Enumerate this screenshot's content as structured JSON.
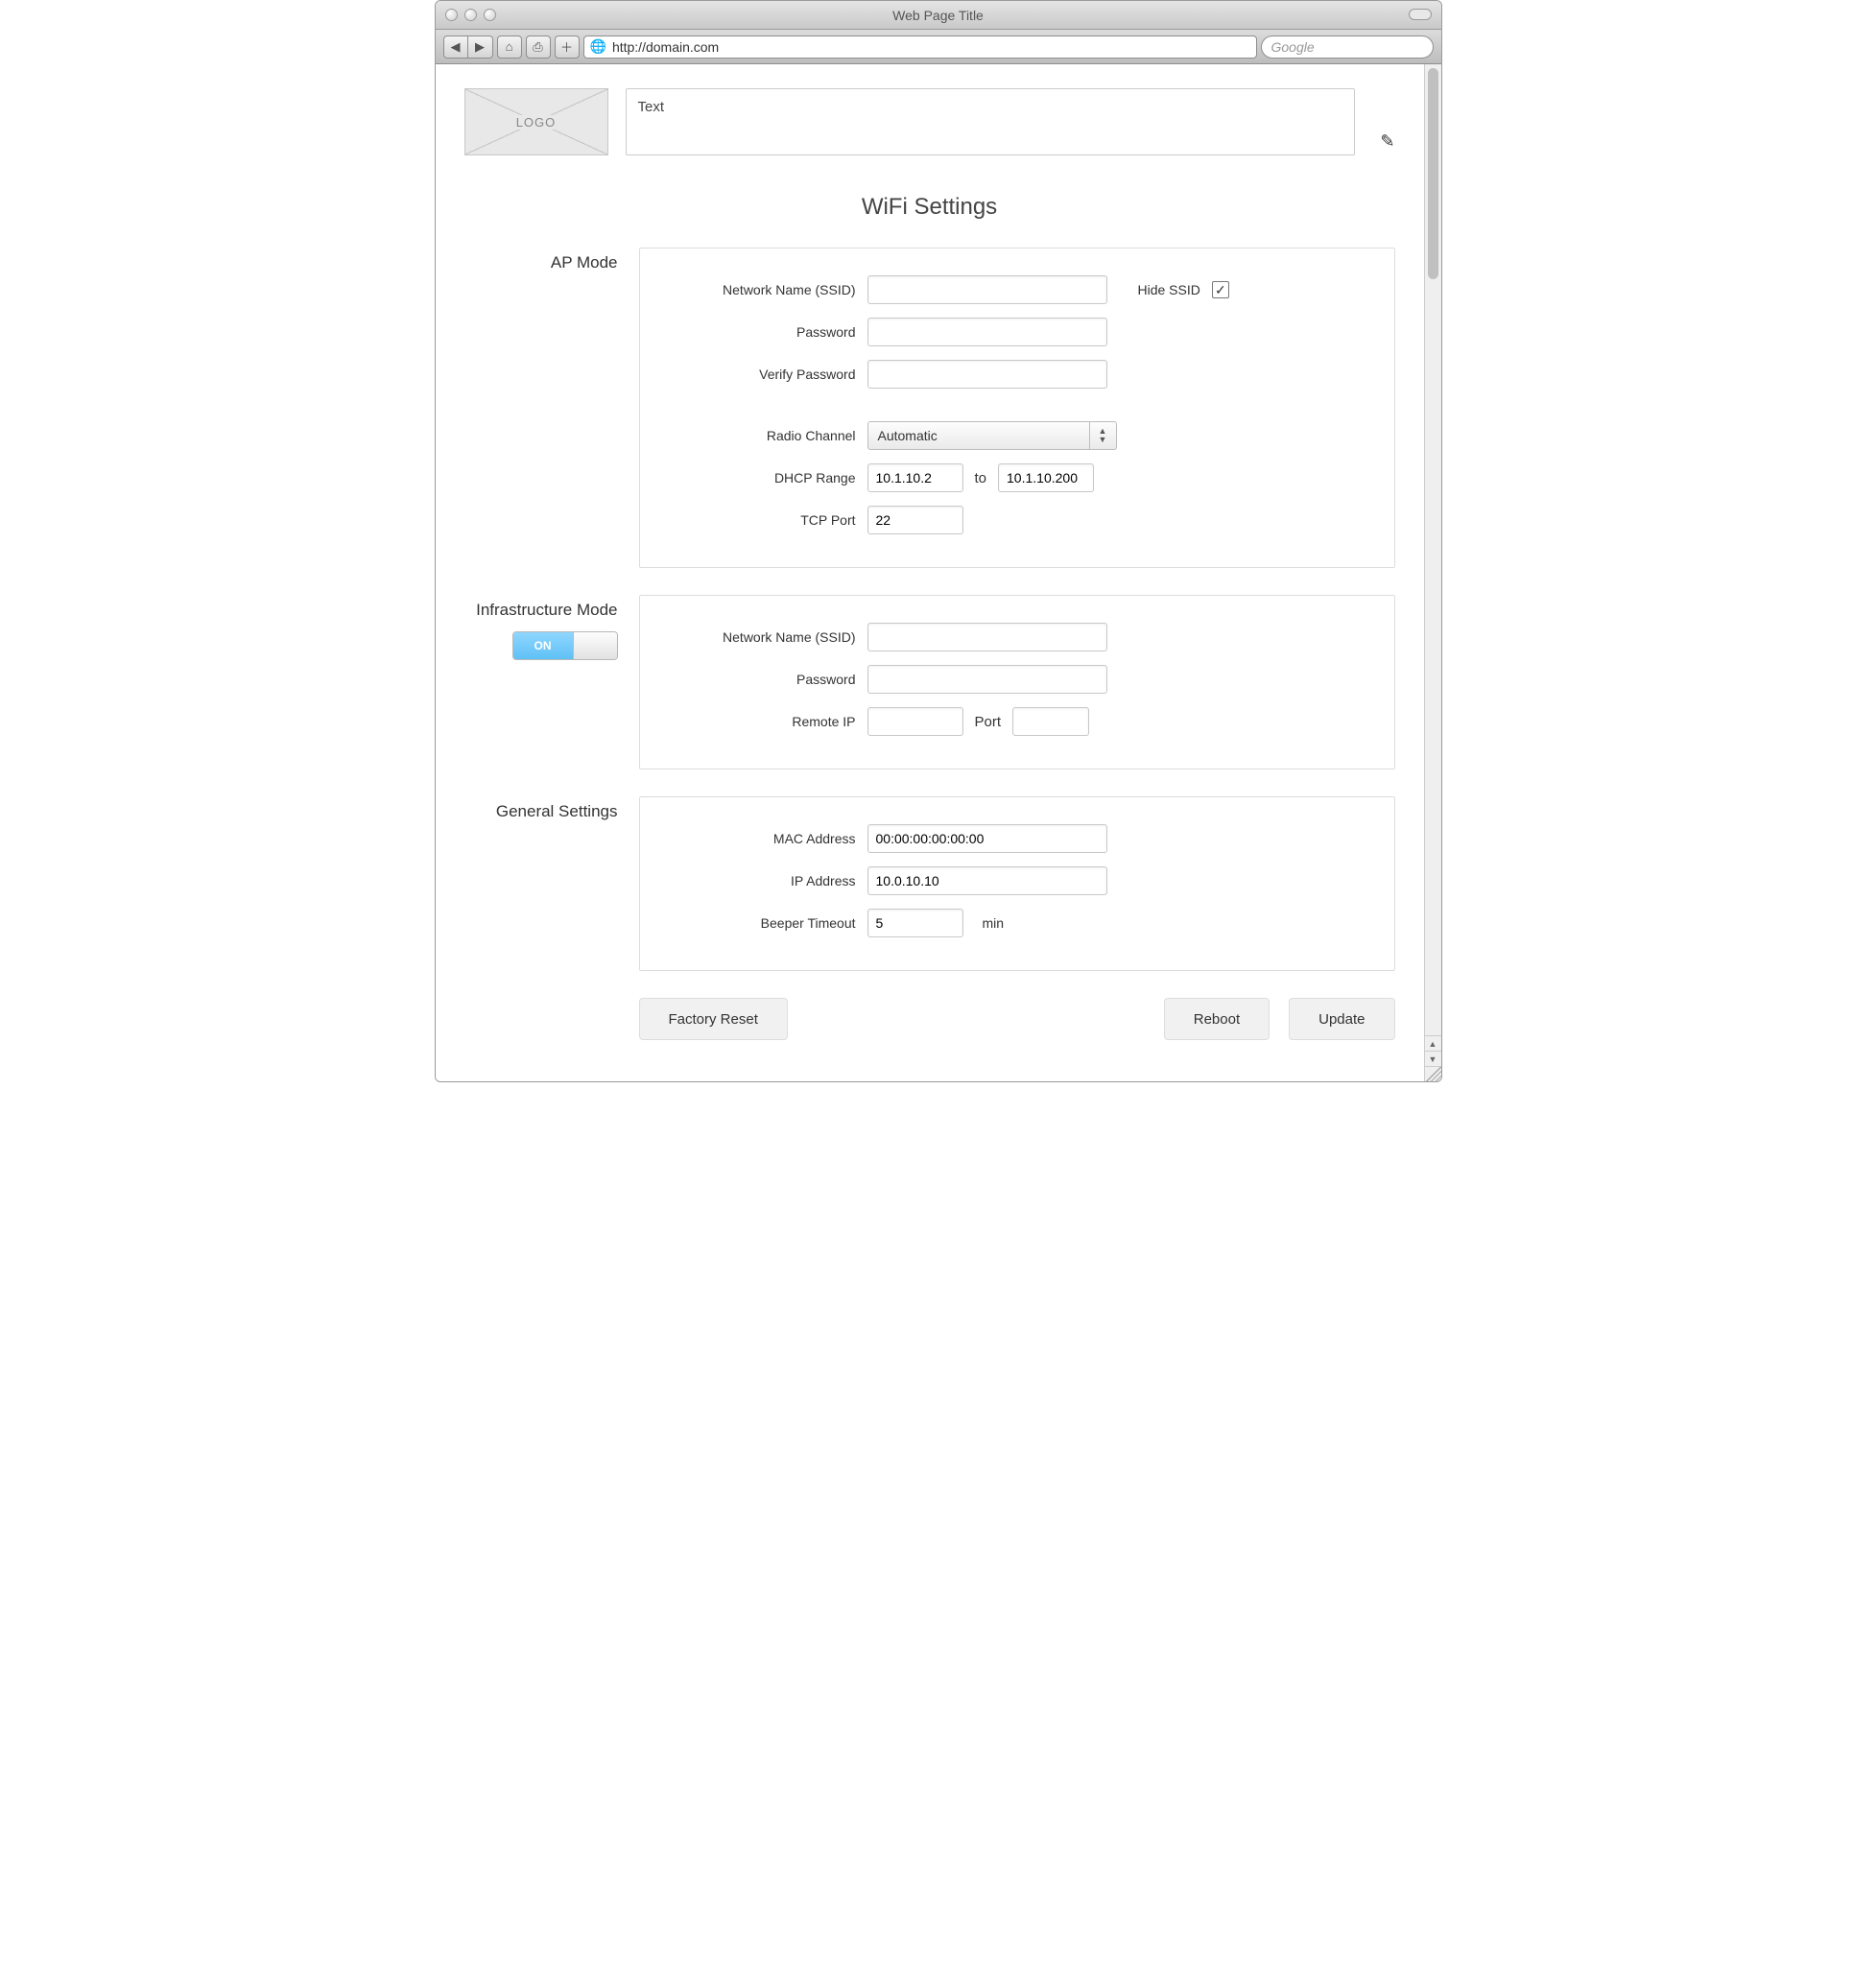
{
  "chrome": {
    "window_title": "Web Page Title",
    "url": "http://domain.com",
    "search_placeholder": "Google"
  },
  "header": {
    "logo_text": "LOGO",
    "text_box": "Text"
  },
  "page_title": "WiFi Settings",
  "ap": {
    "section_label": "AP Mode",
    "ssid_label": "Network Name (SSID)",
    "ssid_value": "",
    "hide_ssid_label": "Hide SSID",
    "hide_ssid_checked": "✓",
    "password_label": "Password",
    "password_value": "",
    "verify_label": "Verify Password",
    "verify_value": "",
    "radio_label": "Radio Channel",
    "radio_value": "Automatic",
    "dhcp_label": "DHCP Range",
    "dhcp_from": "10.1.10.2",
    "dhcp_to_word": "to",
    "dhcp_to": "10.1.10.200",
    "tcp_label": "TCP Port",
    "tcp_value": "22"
  },
  "infra": {
    "section_label": "Infrastructure Mode",
    "switch_state": "ON",
    "ssid_label": "Network Name (SSID)",
    "ssid_value": "",
    "password_label": "Password",
    "password_value": "",
    "remote_ip_label": "Remote IP",
    "remote_ip_value": "",
    "port_label": "Port",
    "port_value": ""
  },
  "general": {
    "section_label": "General Settings",
    "mac_label": "MAC Address",
    "mac_value": "00:00:00:00:00:00",
    "ip_label": "IP Address",
    "ip_value": "10.0.10.10",
    "beeper_label": "Beeper Timeout",
    "beeper_value": "5",
    "beeper_unit": "min"
  },
  "buttons": {
    "factory_reset": "Factory Reset",
    "reboot": "Reboot",
    "update": "Update"
  }
}
